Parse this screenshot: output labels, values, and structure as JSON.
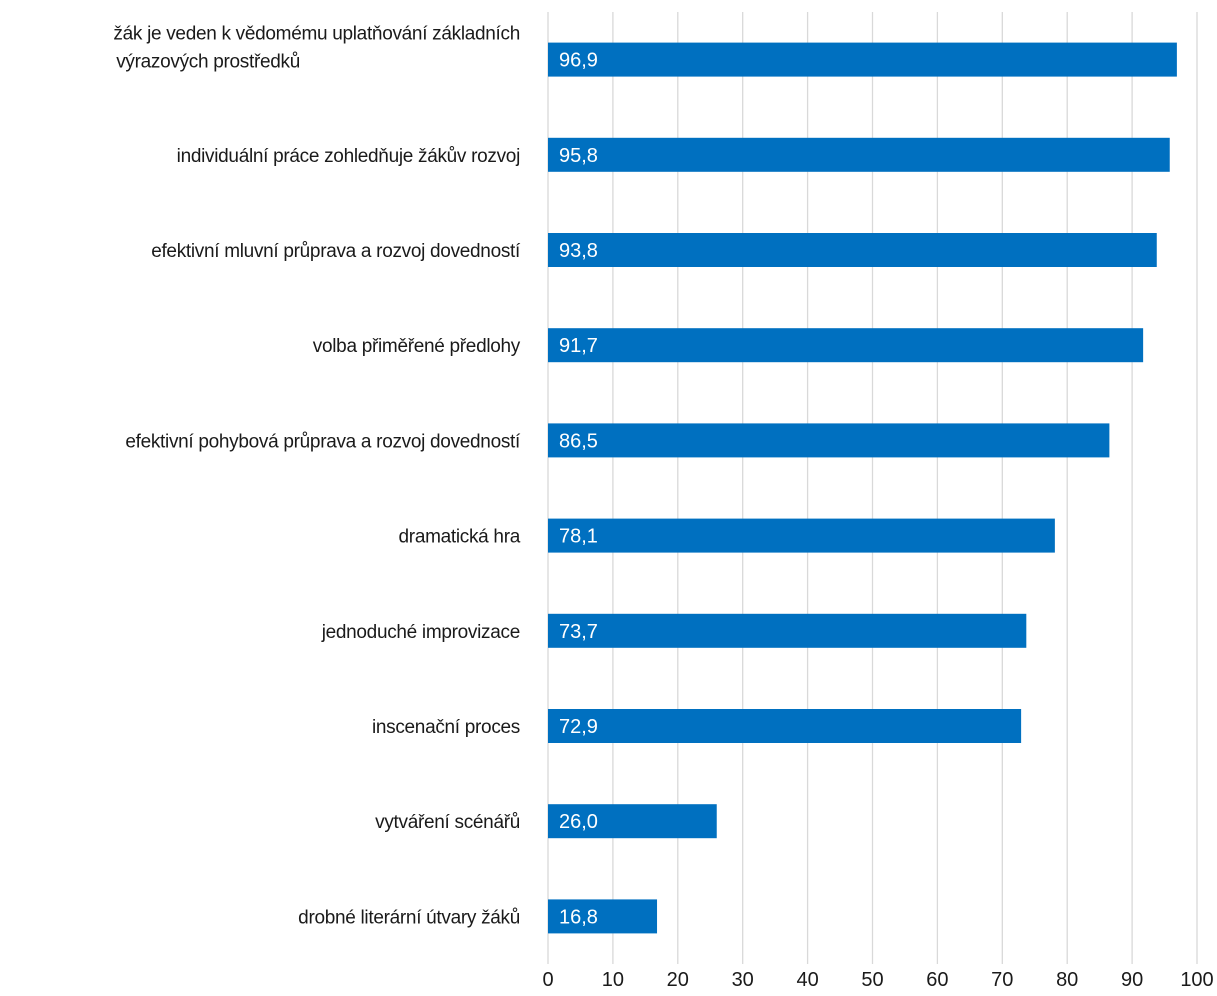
{
  "chart_data": {
    "type": "bar",
    "orientation": "horizontal",
    "categories": [
      "žák je veden k vědomému uplatňování základních výrazových prostředků",
      "individuální práce zohledňuje žákův rozvoj",
      "efektivní mluvní průprava a rozvoj dovedností",
      "volba přiměřené předlohy",
      "efektivní pohybová průprava a rozvoj dovedností",
      "dramatická hra",
      "jednoduché improvizace",
      "inscenační proces",
      "vytváření scénářů",
      "drobné literární útvary žáků"
    ],
    "values": [
      96.9,
      95.8,
      93.8,
      91.7,
      86.5,
      78.1,
      73.7,
      72.9,
      26.0,
      16.8
    ],
    "data_labels": [
      "96,9",
      "95,8",
      "93,8",
      "91,7",
      "86,5",
      "78,1",
      "73,7",
      "72,9",
      "26,0",
      "16,8"
    ],
    "xlim": [
      0,
      100
    ],
    "x_ticks": [
      0,
      10,
      20,
      30,
      40,
      50,
      60,
      70,
      80,
      90,
      100
    ],
    "title": "",
    "xlabel": "",
    "ylabel": "",
    "grid": "vertical",
    "legend": "none",
    "bar_color": "#0070c0"
  }
}
